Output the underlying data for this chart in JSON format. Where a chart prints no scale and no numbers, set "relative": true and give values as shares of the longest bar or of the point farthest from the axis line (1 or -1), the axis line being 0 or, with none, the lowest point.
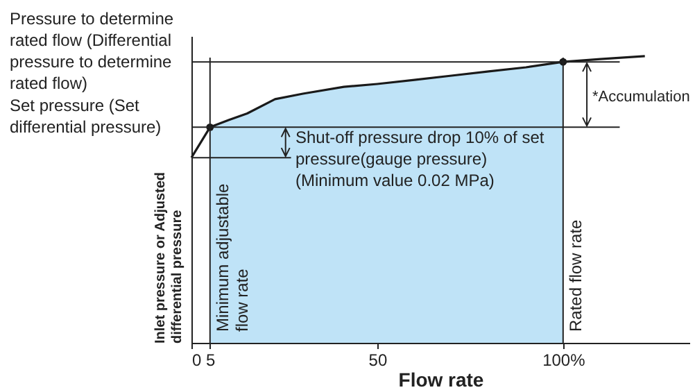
{
  "chart_data": {
    "type": "line",
    "relative": true,
    "xlabel": "Flow rate",
    "ylabel": "Inlet pressure or Adjusted differential pressure",
    "xlim": [
      0,
      134
    ],
    "xticks": [
      0,
      5,
      50,
      {
        "value": 100,
        "label": "100%"
      }
    ],
    "grid": false,
    "series": [
      {
        "type": "area",
        "color": "#bfe3f7",
        "x": [
          5,
          10,
          15,
          22.5,
          30,
          41,
          50,
          60,
          70,
          80,
          90,
          100
        ],
        "values": [
          0.752,
          0.777,
          0.8,
          0.85,
          0.869,
          0.893,
          0.903,
          0.917,
          0.932,
          0.947,
          0.961,
          0.98
        ]
      },
      {
        "color": "#1a1a1a",
        "x": [
          0,
          5,
          10,
          15,
          22.5,
          30,
          41,
          50,
          60,
          70,
          80,
          90,
          100,
          110,
          122
        ],
        "values": [
          0.646,
          0.752,
          0.777,
          0.8,
          0.85,
          0.869,
          0.893,
          0.903,
          0.917,
          0.932,
          0.947,
          0.961,
          0.98,
          0.99,
          1
        ]
      },
      {
        "type": "scatter",
        "color": "#1a1a1a",
        "x": [
          5,
          100
        ],
        "values": [
          0.752,
          0.98
        ]
      }
    ],
    "ref_lines": [
      {
        "axis": "y",
        "value": 0.98,
        "label": "Pressure to determine rated flow (Differential pressure to determine rated flow)"
      },
      {
        "axis": "y",
        "value": 0.752,
        "label": "Set pressure (Set differential pressure)"
      },
      {
        "axis": "y",
        "value": 0.646
      },
      {
        "axis": "x",
        "value": 5,
        "label": "Minimum adjustable flow rate"
      },
      {
        "axis": "x",
        "value": 100,
        "label": "Rated flow rate"
      }
    ],
    "annotations": [
      "Shut-off pressure drop 10% of set pressure(gauge pressure) (Minimum value 0.02 MPa)",
      "*Accumulation"
    ]
  }
}
